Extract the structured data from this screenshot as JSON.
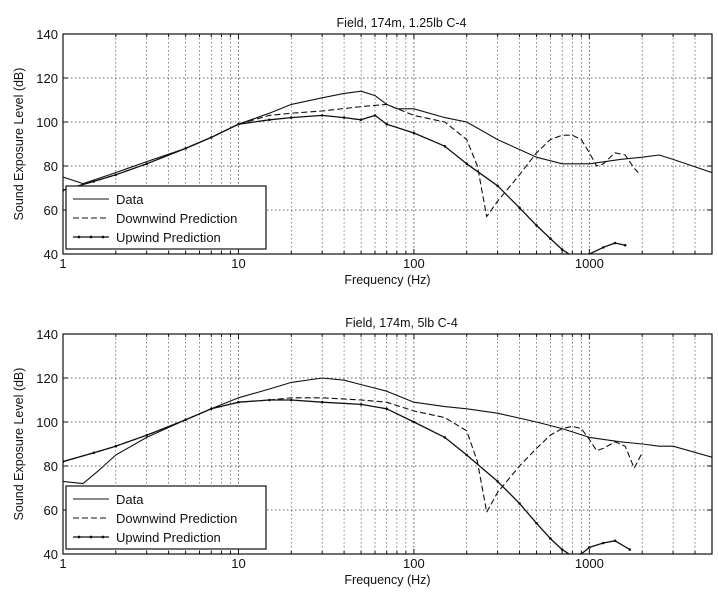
{
  "figure": {
    "background": "#ffffff",
    "ink": "#111111",
    "grid_color": "#333333"
  },
  "chart_data": [
    {
      "type": "line",
      "title": "Field, 174m, 1.25lb C-4",
      "xlabel": "Frequency (Hz)",
      "ylabel": "Sound Exposure Level (dB)",
      "xscale": "log",
      "xlim": [
        1,
        5000
      ],
      "ylim": [
        40,
        140
      ],
      "xticks": [
        1,
        10,
        100,
        1000
      ],
      "xtick_labels": [
        "1",
        "10",
        "100",
        "1000"
      ],
      "yticks": [
        40,
        60,
        80,
        100,
        120,
        140
      ],
      "ytick_labels": [
        "40",
        "60",
        "80",
        "100",
        "120",
        "140"
      ],
      "grid": true,
      "legend": "bottom-left",
      "series": [
        {
          "name": "Data",
          "style": "solid",
          "x": [
            1,
            1.3,
            2,
            3,
            5,
            7,
            10,
            15,
            20,
            30,
            40,
            50,
            60,
            70,
            80,
            100,
            150,
            200,
            300,
            500,
            700,
            1000,
            1500,
            2000,
            2500,
            3000,
            5000
          ],
          "y": [
            75,
            72,
            77,
            82,
            88,
            93,
            99,
            104,
            108,
            111,
            113,
            114,
            112,
            108,
            106,
            106,
            102,
            100,
            92,
            84,
            81,
            81,
            83,
            84,
            85,
            83,
            77
          ]
        },
        {
          "name": "Downwind Prediction",
          "style": "dashed",
          "x": [
            1,
            1.5,
            2,
            3,
            5,
            7,
            10,
            15,
            20,
            30,
            50,
            70,
            100,
            150,
            200,
            230,
            260,
            300,
            400,
            500,
            600,
            700,
            800,
            900,
            1000,
            1100,
            1200,
            1400,
            1600,
            1800,
            1900
          ],
          "y": [
            69,
            73,
            76,
            81,
            88,
            93,
            99,
            103,
            104,
            105,
            107,
            108,
            103,
            100,
            92,
            80,
            57,
            64,
            76,
            86,
            92,
            94,
            94,
            92,
            86,
            80,
            81,
            86,
            85,
            79,
            77
          ]
        },
        {
          "name": "Upwind Prediction",
          "style": "solid-dotted",
          "x": [
            1,
            1.5,
            2,
            3,
            5,
            7,
            10,
            15,
            20,
            30,
            40,
            50,
            60,
            70,
            100,
            150,
            200,
            300,
            400,
            500,
            600,
            700,
            800,
            900,
            1000,
            1200,
            1400,
            1600
          ],
          "y": [
            69,
            73,
            76,
            81,
            88,
            93,
            99,
            101,
            102,
            103,
            102,
            101,
            103,
            99,
            95,
            89,
            81,
            71,
            61,
            53,
            47,
            42,
            39,
            39,
            40,
            43,
            45,
            44
          ]
        }
      ]
    },
    {
      "type": "line",
      "title": "Field, 174m, 5lb C-4",
      "xlabel": "Frequency (Hz)",
      "ylabel": "Sound Exposure Level (dB)",
      "xscale": "log",
      "xlim": [
        1,
        5000
      ],
      "ylim": [
        40,
        140
      ],
      "xticks": [
        1,
        10,
        100,
        1000
      ],
      "xtick_labels": [
        "1",
        "10",
        "100",
        "1000"
      ],
      "yticks": [
        40,
        60,
        80,
        100,
        120,
        140
      ],
      "ytick_labels": [
        "40",
        "60",
        "80",
        "100",
        "120",
        "140"
      ],
      "grid": true,
      "legend": "bottom-left",
      "series": [
        {
          "name": "Data",
          "style": "solid",
          "x": [
            1,
            1.3,
            1.6,
            2,
            3,
            5,
            7,
            10,
            15,
            20,
            30,
            40,
            50,
            70,
            100,
            150,
            200,
            300,
            500,
            700,
            1000,
            1500,
            2000,
            2500,
            3000,
            5000
          ],
          "y": [
            73,
            72,
            78,
            85,
            93,
            101,
            106,
            111,
            115,
            118,
            120,
            119,
            117,
            114,
            109,
            107,
            106,
            104,
            100,
            97,
            93,
            91,
            90,
            89,
            89,
            84
          ]
        },
        {
          "name": "Downwind Prediction",
          "style": "dashed",
          "x": [
            1,
            1.5,
            2,
            3,
            5,
            7,
            10,
            15,
            20,
            30,
            50,
            70,
            100,
            150,
            200,
            230,
            260,
            300,
            400,
            500,
            600,
            700,
            800,
            900,
            1000,
            1100,
            1200,
            1400,
            1600,
            1800,
            2000
          ],
          "y": [
            82,
            86,
            89,
            94,
            101,
            106,
            109,
            110,
            111,
            111,
            110,
            109,
            105,
            102,
            96,
            82,
            59,
            68,
            80,
            88,
            94,
            97,
            98,
            97,
            92,
            87,
            88,
            91,
            89,
            79,
            86
          ]
        },
        {
          "name": "Upwind Prediction",
          "style": "solid-dotted",
          "x": [
            1,
            1.5,
            2,
            3,
            5,
            7,
            10,
            15,
            20,
            30,
            50,
            70,
            100,
            150,
            200,
            300,
            400,
            500,
            600,
            700,
            800,
            900,
            1000,
            1200,
            1400,
            1700
          ],
          "y": [
            82,
            86,
            89,
            94,
            101,
            106,
            109,
            110,
            110,
            109,
            108,
            106,
            100,
            93,
            85,
            73,
            63,
            54,
            47,
            42,
            39,
            40,
            43,
            45,
            46,
            42
          ]
        }
      ]
    }
  ]
}
